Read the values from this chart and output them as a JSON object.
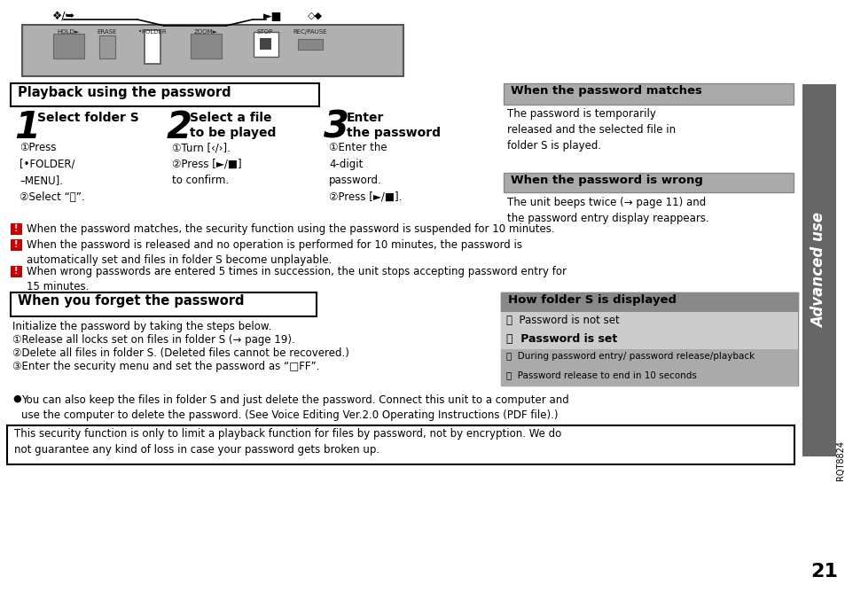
{
  "bg_color": "#ffffff",
  "page_num": "21",
  "rqt": "RQT8824",
  "title_playback": "Playback using the password",
  "title_when_matches": "When the password matches",
  "title_when_wrong": "When the password is wrong",
  "title_forget": "When you forget the password",
  "title_how_folder": "How folder S is displayed",
  "step1_num": "1",
  "step1_title": "Select folder S",
  "step2_num": "2",
  "step2_title": "Select a file\nto be played",
  "step3_num": "3",
  "step3_title": "Enter\nthe password",
  "step1_body": "①Press\n[•FOLDER/\n–MENU].\n②Select “Ⓢ”.",
  "step2_body": "①Turn [‹/›].\n②Press [►/■]\nto confirm.",
  "step3_body": "①Enter the\n4-digit\npassword.\n②Press [►/■].",
  "matches_body": "The password is temporarily\nreleased and the selected file in\nfolder S is played.",
  "wrong_body": "The unit beeps twice (→ page 11) and\nthe password entry display reappears.",
  "note1": "When the password matches, the security function using the password is suspended for 10 minutes.",
  "note2": "When the password is released and no operation is performed for 10 minutes, the password is\nautomatically set and files in folder S become unplayable.",
  "note3": "When wrong passwords are entered 5 times in succession, the unit stops accepting password entry for\n15 minutes.",
  "forget_init": "Initialize the password by taking the steps below.",
  "forget_step1": "①Release all locks set on files in folder S (→ page 19).",
  "forget_step2": "②Delete all files in folder S. (Deleted files cannot be recovered.)",
  "forget_step3": "③Enter the security menu and set the password as “□FF”.",
  "bullet_text": "You can also keep the files in folder S and just delete the password. Connect this unit to a computer and\nuse the computer to delete the password. (See Voice Editing Ver.2.0 Operating Instructions (PDF file).)",
  "bottom_note": "This security function is only to limit a playback function for files by password, not by encryption. We do\nnot guarantee any kind of loss in case your password gets broken up.",
  "how_row1": "Ⓢ  Password is not set",
  "how_row2": "Ⓢ  Password is set",
  "how_row3": "Ⓢ  During password entry/ password release/playback",
  "how_row4": "Ⓢ  Password release to end in 10 seconds",
  "sidebar_text": "Advanced use"
}
